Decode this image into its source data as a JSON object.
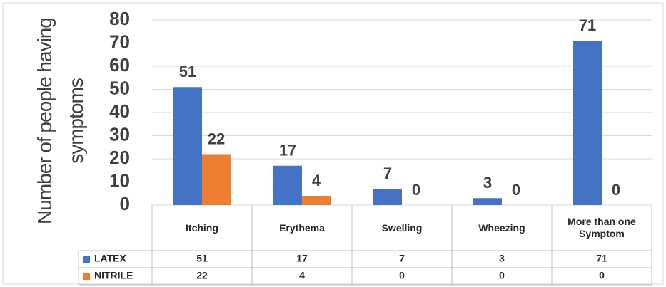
{
  "chart_data": {
    "type": "bar",
    "y_label": "Number of people having symptoms",
    "categories": [
      "Itching",
      "Erythema",
      "Swelling",
      "Wheezing",
      "More than one Symptom"
    ],
    "series": [
      {
        "name": "LATEX",
        "color": "#4472c4",
        "values": [
          51,
          17,
          7,
          3,
          71
        ]
      },
      {
        "name": "NITRILE",
        "color": "#ed7d31",
        "values": [
          22,
          4,
          0,
          0,
          0
        ]
      }
    ],
    "ylim": [
      0,
      80
    ],
    "yticks": [
      0,
      10,
      20,
      30,
      40,
      50,
      60,
      70,
      80
    ],
    "grid": true,
    "data_table": true
  }
}
